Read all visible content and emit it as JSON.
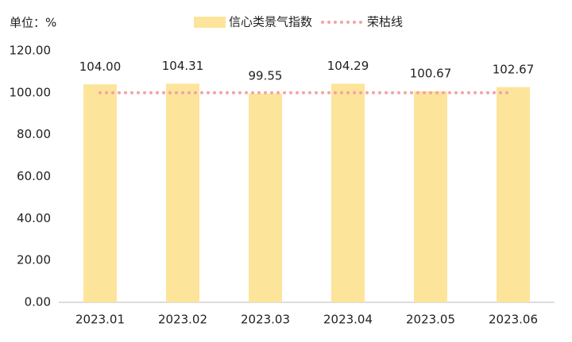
{
  "chart_data": {
    "type": "bar",
    "unit_label": "单位：%",
    "categories": [
      "2023.01",
      "2023.02",
      "2023.03",
      "2023.04",
      "2023.05",
      "2023.06"
    ],
    "series": [
      {
        "name": "信心类景气指数",
        "type": "bar",
        "color": "#fde49b",
        "values": [
          104.0,
          104.31,
          99.55,
          104.29,
          100.67,
          102.67
        ],
        "value_labels": [
          "104.00",
          "104.31",
          "99.55",
          "104.29",
          "100.67",
          "102.67"
        ]
      },
      {
        "name": "荣枯线",
        "type": "line",
        "color": "#f4a3a3",
        "values": [
          100,
          100,
          100,
          100,
          100,
          100
        ]
      }
    ],
    "ylim": [
      0,
      120
    ],
    "yticks": [
      {
        "value": 0,
        "label": "0.00"
      },
      {
        "value": 20,
        "label": "20.00"
      },
      {
        "value": 40,
        "label": "40.00"
      },
      {
        "value": 60,
        "label": "60.00"
      },
      {
        "value": 80,
        "label": "80.00"
      },
      {
        "value": 100,
        "label": "100.00"
      },
      {
        "value": 120,
        "label": "120.00"
      }
    ],
    "grid": false
  }
}
